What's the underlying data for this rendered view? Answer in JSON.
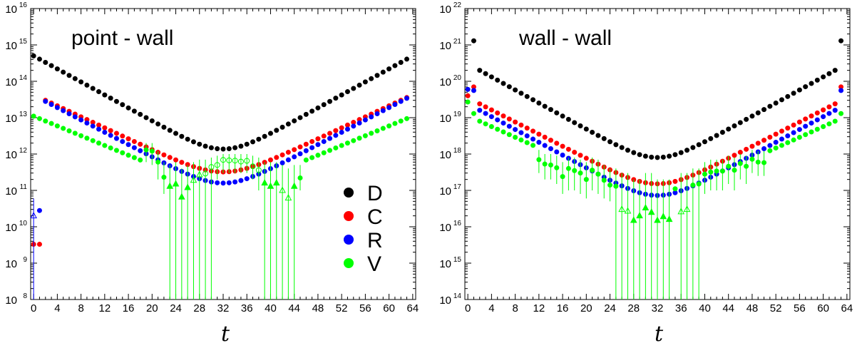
{
  "chart_data": [
    {
      "type": "scatter",
      "title": "point - wall",
      "xlabel": "t",
      "ylabel": "",
      "xlim": [
        -0.5,
        64.5
      ],
      "ylim_exp": [
        8,
        16
      ],
      "yscale": "log",
      "x_ticks": [
        0,
        4,
        8,
        12,
        16,
        20,
        24,
        28,
        32,
        36,
        40,
        44,
        48,
        52,
        56,
        60,
        64
      ],
      "x_minor_step": 1,
      "legend": {
        "placement": "right",
        "entries": [
          "D",
          "C",
          "R",
          "V"
        ]
      },
      "series": [
        {
          "name": "D",
          "color": "#000000",
          "decay": {
            "t0": 0,
            "amp": 500000000000000.0,
            "m": 0.206,
            "T": 64
          },
          "t_range": [
            0,
            63
          ]
        },
        {
          "name": "C",
          "color": "#ff0000",
          "decay": {
            "t0": 2,
            "amp": 30000000000000.0,
            "m": 0.1743,
            "T": 64
          },
          "t_range": [
            2,
            63
          ],
          "points": [
            {
              "t": 0,
              "y": 3300000000.0
            },
            {
              "t": 1,
              "y": 3300000000.0
            }
          ]
        },
        {
          "name": "R",
          "color": "#0000ff",
          "decay": {
            "t0": 2,
            "amp": 28000000000000.0,
            "m": 0.1955,
            "T": 64
          },
          "t_range": [
            2,
            63
          ],
          "points": [
            {
              "t": 1,
              "y": 28000000000.0
            }
          ],
          "open_points": [
            {
              "t": 0,
              "y": 20000000000.0,
              "err_lo": 100000000.0,
              "err_hi": 60000000000.0
            }
          ]
        },
        {
          "name": "V",
          "color": "#00ff00",
          "decay": {
            "t0": 0,
            "amp": 11000000000000.0,
            "m": 0.155,
            "T": 64
          },
          "t_range": [
            0,
            63
          ],
          "noisy_points": [
            {
              "t": 19,
              "y": 1300000000000.0,
              "err_lo": 600000000000.0,
              "err_hi": 2000000000000.0
            },
            {
              "t": 20,
              "y": 1200000000000.0,
              "err_lo": 500000000000.0,
              "err_hi": 2000000000000.0
            },
            {
              "t": 21,
              "y": 600000000000.0,
              "err_lo": 200000000000.0,
              "err_hi": 1200000000000.0
            },
            {
              "t": 22,
              "y": 230000000000.0,
              "err_lo": 80000000000.0,
              "err_hi": 600000000000.0
            },
            {
              "t": 23,
              "y": 130000000000.0,
              "err_lo": 100000000.0,
              "err_hi": 500000000000.0,
              "symbol": "triangle"
            },
            {
              "t": 24,
              "y": 150000000000.0,
              "err_lo": 100000000.0,
              "err_hi": 600000000000.0,
              "symbol": "triangle"
            },
            {
              "t": 25,
              "y": 66000000000.0,
              "err_lo": 100000000.0,
              "err_hi": 400000000000.0,
              "symbol": "triangle"
            },
            {
              "t": 26,
              "y": 120000000000.0,
              "err_lo": 100000000.0,
              "err_hi": 500000000000.0,
              "symbol": "triangle"
            },
            {
              "t": 27,
              "y": 190000000000.0,
              "err_lo": 100000000.0,
              "err_hi": 600000000000.0,
              "symbol": "open-triangle"
            },
            {
              "t": 28,
              "y": 270000000000.0,
              "err_lo": 100000000.0,
              "err_hi": 700000000000.0,
              "symbol": "open-triangle"
            },
            {
              "t": 29,
              "y": 290000000000.0,
              "err_lo": 100000000.0,
              "err_hi": 700000000000.0,
              "symbol": "open-circle"
            },
            {
              "t": 30,
              "y": 440000000000.0,
              "err_lo": 100000000.0,
              "err_hi": 800000000000.0,
              "symbol": "open-circle"
            },
            {
              "t": 31,
              "y": 500000000000.0,
              "err_lo": 200000000000.0,
              "err_hi": 900000000000.0,
              "symbol": "open-circle"
            },
            {
              "t": 32,
              "y": 690000000000.0,
              "err_lo": 300000000000.0,
              "err_hi": 1000000000000.0,
              "symbol": "open-circle"
            },
            {
              "t": 33,
              "y": 670000000000.0,
              "err_lo": 300000000000.0,
              "err_hi": 1000000000000.0,
              "symbol": "open-circle"
            },
            {
              "t": 34,
              "y": 660000000000.0,
              "err_lo": 300000000000.0,
              "err_hi": 1000000000000.0,
              "symbol": "open-circle"
            },
            {
              "t": 35,
              "y": 620000000000.0,
              "err_lo": 300000000000.0,
              "err_hi": 1000000000000.0,
              "symbol": "open-circle"
            },
            {
              "t": 36,
              "y": 650000000000.0,
              "err_lo": 300000000000.0,
              "err_hi": 1000000000000.0,
              "symbol": "open-circle"
            },
            {
              "t": 37,
              "y": 460000000000.0,
              "err_lo": 200000000000.0,
              "err_hi": 900000000000.0,
              "symbol": "open-circle"
            },
            {
              "t": 38,
              "y": 360000000000.0,
              "err_lo": 100000000000.0,
              "err_hi": 800000000000.0,
              "symbol": "open-circle"
            },
            {
              "t": 39,
              "y": 160000000000.0,
              "err_lo": 100000000.0,
              "err_hi": 600000000000.0,
              "symbol": "triangle"
            },
            {
              "t": 40,
              "y": 130000000000.0,
              "err_lo": 100000000.0,
              "err_hi": 600000000000.0,
              "symbol": "triangle"
            },
            {
              "t": 41,
              "y": 160000000000.0,
              "err_lo": 100000000.0,
              "err_hi": 600000000000.0,
              "symbol": "triangle"
            },
            {
              "t": 42,
              "y": 100000000000.0,
              "err_lo": 100000000.0,
              "err_hi": 500000000000.0,
              "symbol": "open-triangle"
            },
            {
              "t": 43,
              "y": 62000000000.0,
              "err_lo": 100000000.0,
              "err_hi": 400000000000.0,
              "symbol": "open-triangle"
            },
            {
              "t": 44,
              "y": 130000000000.0,
              "err_lo": 100000000.0,
              "err_hi": 500000000000.0,
              "symbol": "triangle"
            },
            {
              "t": 45,
              "y": 220000000000.0,
              "err_lo": 100000000000.0,
              "err_hi": 500000000000.0
            }
          ]
        }
      ]
    },
    {
      "type": "scatter",
      "title": "wall - wall",
      "xlabel": "t",
      "ylabel": "",
      "xlim": [
        -0.5,
        64.5
      ],
      "ylim_exp": [
        14,
        22
      ],
      "yscale": "log",
      "x_ticks": [
        0,
        4,
        8,
        12,
        16,
        20,
        24,
        28,
        32,
        36,
        40,
        44,
        48,
        52,
        56,
        60,
        64
      ],
      "x_minor_step": 1,
      "legend": null,
      "series": [
        {
          "name": "D",
          "color": "#000000",
          "decay": {
            "t0": 2,
            "amp": 2e+20,
            "m": 0.207,
            "T": 64
          },
          "t_range": [
            2,
            62
          ],
          "points": [
            {
              "t": 1,
              "y": 1.3e+21
            },
            {
              "t": 63,
              "y": 1.3e+21
            }
          ]
        },
        {
          "name": "C",
          "color": "#ff0000",
          "decay": {
            "t0": 2,
            "amp": 2.4e+19,
            "m": 0.192,
            "T": 64
          },
          "t_range": [
            2,
            62
          ],
          "points": [
            {
              "t": 0,
              "y": 4e+19
            },
            {
              "t": 1,
              "y": 7e+19
            },
            {
              "t": 63,
              "y": 7e+19
            }
          ]
        },
        {
          "name": "R",
          "color": "#0000ff",
          "decay": {
            "t0": 2,
            "amp": 1.6e+19,
            "m": 0.203,
            "T": 64
          },
          "t_range": [
            2,
            62
          ],
          "points": [
            {
              "t": 0,
              "y": 6e+19
            },
            {
              "t": 1,
              "y": 5.6e+19
            },
            {
              "t": 63,
              "y": 5.6e+19
            }
          ]
        },
        {
          "name": "V",
          "color": "#00ff00",
          "decay": {
            "t0": 2,
            "amp": 8e+18,
            "m": 0.17,
            "T": 64
          },
          "t_range": [
            2,
            62
          ],
          "points": [
            {
              "t": 0,
              "y": 2.7e+19
            },
            {
              "t": 1,
              "y": 1.3e+19
            },
            {
              "t": 63,
              "y": 1.3e+19
            }
          ],
          "noisy_points": [
            {
              "t": 12,
              "y": 7e+17,
              "err_lo": 3e+17,
              "err_hi": 1.3e+18
            },
            {
              "t": 13,
              "y": 5.3e+17,
              "err_lo": 2e+17,
              "err_hi": 1e+18
            },
            {
              "t": 14,
              "y": 5e+17,
              "err_lo": 2e+17,
              "err_hi": 1e+18
            },
            {
              "t": 15,
              "y": 4.2e+17,
              "err_lo": 1.5e+17,
              "err_hi": 9e+17
            },
            {
              "t": 16,
              "y": 2.4e+17,
              "err_lo": 8e+16,
              "err_hi": 6e+17
            },
            {
              "t": 17,
              "y": 4e+17,
              "err_lo": 1e+17,
              "err_hi": 8e+17
            },
            {
              "t": 18,
              "y": 3.5e+17,
              "err_lo": 1e+17,
              "err_hi": 8e+17
            },
            {
              "t": 19,
              "y": 3e+17,
              "err_lo": 8e+16,
              "err_hi": 7e+17
            },
            {
              "t": 20,
              "y": 2e+17,
              "err_lo": 6e+16,
              "err_hi": 6e+17
            },
            {
              "t": 21,
              "y": 3.6e+17,
              "err_lo": 1e+17,
              "err_hi": 8e+17
            },
            {
              "t": 22,
              "y": 2.8e+17,
              "err_lo": 8e+16,
              "err_hi": 7e+17
            },
            {
              "t": 23,
              "y": 1.9e+17,
              "err_lo": 6e+16,
              "err_hi": 5e+17
            },
            {
              "t": 24,
              "y": 1.4e+17,
              "err_lo": 5e+16,
              "err_hi": 4e+17
            },
            {
              "t": 25,
              "y": 1.3e+17,
              "err_lo": 100000000000000.0,
              "err_hi": 4e+17
            },
            {
              "t": 26,
              "y": 3e+16,
              "err_lo": 100000000000000.0,
              "err_hi": 3e+17,
              "symbol": "open-triangle"
            },
            {
              "t": 27,
              "y": 2.7e+16,
              "err_lo": 100000000000000.0,
              "err_hi": 3e+17,
              "symbol": "open-triangle"
            },
            {
              "t": 28,
              "y": 1.5e+16,
              "err_lo": 100000000000000.0,
              "err_hi": 2e+17,
              "symbol": "triangle"
            },
            {
              "t": 29,
              "y": 2e+16,
              "err_lo": 100000000000000.0,
              "err_hi": 2e+17,
              "symbol": "triangle"
            },
            {
              "t": 30,
              "y": 3.3e+16,
              "err_lo": 100000000000000.0,
              "err_hi": 3e+17,
              "symbol": "triangle"
            },
            {
              "t": 31,
              "y": 2.5e+16,
              "err_lo": 100000000000000.0,
              "err_hi": 3e+17,
              "symbol": "triangle"
            },
            {
              "t": 32,
              "y": 1.5e+16,
              "err_lo": 100000000000000.0,
              "err_hi": 2e+17,
              "symbol": "triangle"
            },
            {
              "t": 33,
              "y": 1.9e+16,
              "err_lo": 100000000000000.0,
              "err_hi": 2e+17,
              "symbol": "triangle"
            },
            {
              "t": 34,
              "y": 1.6e+16,
              "err_lo": 100000000000000.0,
              "err_hi": 2e+17,
              "symbol": "triangle"
            },
            {
              "t": 36,
              "y": 2.6e+16,
              "err_lo": 100000000000000.0,
              "err_hi": 3e+17,
              "symbol": "open-triangle"
            },
            {
              "t": 37,
              "y": 3e+16,
              "err_lo": 100000000000000.0,
              "err_hi": 3e+17,
              "symbol": "open-triangle"
            },
            {
              "t": 38,
              "y": 1.4e+17,
              "err_lo": 100000000000000.0,
              "err_hi": 4e+17
            },
            {
              "t": 39,
              "y": 1.5e+17,
              "err_lo": 100000000000000.0,
              "err_hi": 4e+17
            },
            {
              "t": 40,
              "y": 2.8e+17,
              "err_lo": 8e+16,
              "err_hi": 6e+17
            },
            {
              "t": 41,
              "y": 3.2e+17,
              "err_lo": 1e+17,
              "err_hi": 7e+17
            },
            {
              "t": 42,
              "y": 3.4e+17,
              "err_lo": 1e+17,
              "err_hi": 7e+17
            },
            {
              "t": 43,
              "y": 3.4e+17,
              "err_lo": 1e+17,
              "err_hi": 7e+17
            },
            {
              "t": 44,
              "y": 4.6e+17,
              "err_lo": 1.5e+17,
              "err_hi": 9e+17
            },
            {
              "t": 45,
              "y": 3.6e+17,
              "err_lo": 1e+17,
              "err_hi": 8e+17
            },
            {
              "t": 46,
              "y": 5.5e+17,
              "err_lo": 2e+17,
              "err_hi": 1e+18
            },
            {
              "t": 47,
              "y": 4.6e+17,
              "err_lo": 1.5e+17,
              "err_hi": 9e+17
            },
            {
              "t": 48,
              "y": 7.2e+17,
              "err_lo": 3e+17,
              "err_hi": 1.3e+18
            },
            {
              "t": 49,
              "y": 6e+17,
              "err_lo": 2.5e+17,
              "err_hi": 1.2e+18
            },
            {
              "t": 50,
              "y": 5.8e+17,
              "err_lo": 2.5e+17,
              "err_hi": 1.2e+18
            }
          ]
        }
      ]
    }
  ]
}
